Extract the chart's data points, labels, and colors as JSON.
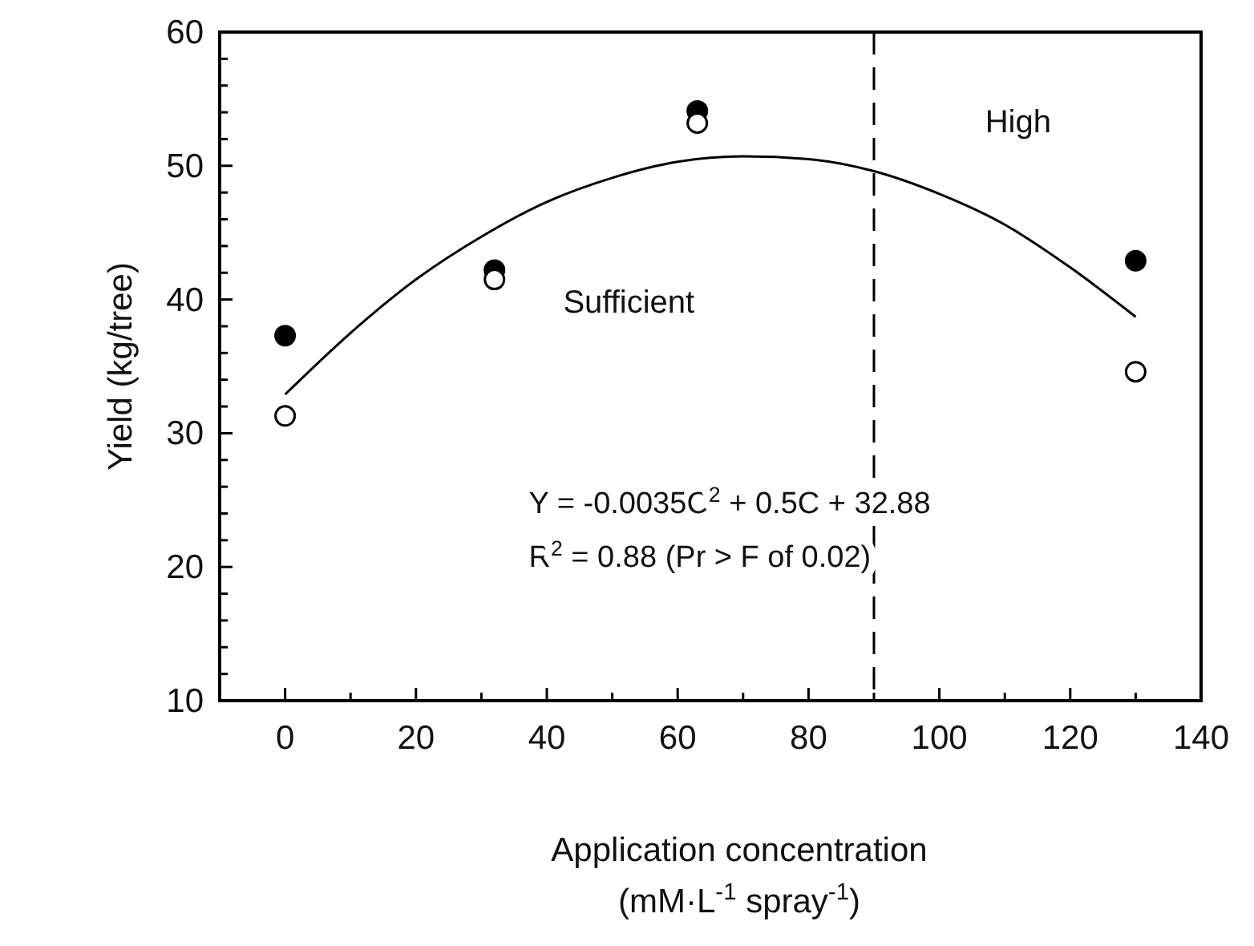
{
  "chart_data": {
    "type": "scatter",
    "xlabel": "Application concentration\n(mM·L$^{-1}$ spray$^{-1}$)",
    "ylabel": "Yield (kg/tree)",
    "xlim": [
      -10,
      140
    ],
    "xticks": [
      0,
      {
        "value": 10,
        "label": null
      },
      20,
      {
        "value": 30,
        "label": null
      },
      40,
      {
        "value": 50,
        "label": null
      },
      60,
      {
        "value": 70,
        "label": null
      },
      80,
      {
        "value": 90,
        "label": null
      },
      100,
      {
        "value": 110,
        "label": null
      },
      120,
      {
        "value": 130,
        "label": null
      },
      140
    ],
    "ylim": [
      10,
      60
    ],
    "yticks": [
      10,
      {
        "value": 12,
        "label": null
      },
      {
        "value": 14,
        "label": null
      },
      {
        "value": 16,
        "label": null
      },
      {
        "value": 18,
        "label": null
      },
      20,
      {
        "value": 22,
        "label": null
      },
      {
        "value": 24,
        "label": null
      },
      {
        "value": 26,
        "label": null
      },
      {
        "value": 28,
        "label": null
      },
      30,
      {
        "value": 32,
        "label": null
      },
      {
        "value": 34,
        "label": null
      },
      {
        "value": 36,
        "label": null
      },
      {
        "value": 38,
        "label": null
      },
      40,
      {
        "value": 42,
        "label": null
      },
      {
        "value": 44,
        "label": null
      },
      {
        "value": 46,
        "label": null
      },
      {
        "value": 48,
        "label": null
      },
      50,
      {
        "value": 52,
        "label": null
      },
      {
        "value": 54,
        "label": null
      },
      {
        "value": 56,
        "label": null
      },
      {
        "value": 58,
        "label": null
      },
      60
    ],
    "grid": false,
    "series": [
      {
        "color": "#000000",
        "marker": "circle",
        "x": [
          0,
          32,
          63,
          130
        ],
        "values": [
          37.3,
          42.2,
          54.1,
          42.9
        ]
      },
      {
        "color": "#ffffff",
        "marker": "circle",
        "x": [
          0,
          32,
          63,
          130
        ],
        "values": [
          31.3,
          41.5,
          53.2,
          34.6
        ]
      },
      {
        "type": "line",
        "color": "#000000",
        "marker": "none",
        "x": [
          0,
          10,
          20,
          30,
          40,
          50,
          60,
          70,
          80,
          90,
          100,
          110,
          120,
          130
        ],
        "values": [
          32.9,
          37.5,
          41.5,
          44.7,
          47.3,
          49.1,
          50.3,
          50.7,
          50.5,
          49.6,
          47.9,
          45.6,
          42.4,
          38.7
        ]
      }
    ],
    "ref_lines": [
      {
        "axis": "x",
        "value": 90,
        "line_style": "dashed",
        "color": "#000000"
      }
    ],
    "annotations": [
      "Sufficient",
      "High",
      "Y = -0.0035C$^{2}$ + 0.5C + 32.88",
      "R$^{2}$ = 0.88 (Pr > F of 0.02)"
    ]
  }
}
